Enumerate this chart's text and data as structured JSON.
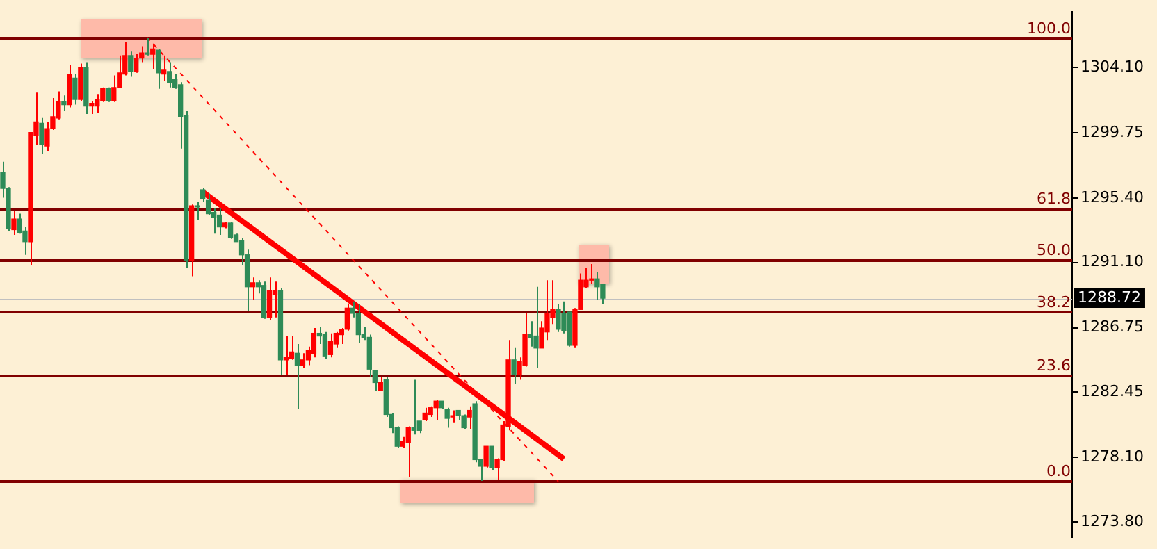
{
  "chart_data": {
    "type": "candlestick",
    "categories": [
      null,
      null,
      null,
      null,
      null,
      null,
      null,
      null,
      null,
      null,
      null,
      null,
      null,
      null,
      null,
      null,
      null,
      null,
      null,
      null,
      null,
      null,
      null,
      null,
      null,
      null,
      null,
      null,
      null,
      null,
      null,
      null,
      null,
      null,
      null,
      null,
      null,
      null,
      null,
      null,
      null,
      null,
      null,
      null,
      null,
      null,
      null,
      null,
      null,
      null,
      null,
      null,
      null,
      null,
      null,
      null,
      null,
      null,
      null,
      null,
      null,
      null,
      null,
      null,
      null,
      null,
      null,
      null,
      null,
      null,
      null,
      null,
      null,
      null,
      null,
      null,
      null,
      null,
      null,
      null,
      null,
      null,
      null,
      null,
      null,
      null,
      null,
      null,
      null,
      null,
      null,
      null,
      null,
      null,
      null,
      null,
      null,
      null,
      null,
      null,
      null,
      null,
      null,
      null,
      null,
      null,
      null,
      null,
      null,
      null,
      null,
      null,
      null,
      null,
      null,
      null,
      null,
      null,
      null,
      null,
      null,
      null,
      null,
      null,
      null,
      null,
      null,
      null,
      null,
      null,
      null,
      null,
      null,
      null,
      null,
      null,
      null,
      null,
      null,
      null,
      null,
      null,
      null,
      null,
      null,
      null,
      null,
      null,
      null,
      null,
      null,
      null,
      null,
      null,
      null,
      null,
      null,
      null,
      null,
      null,
      null,
      null,
      null,
      null,
      null,
      null,
      null,
      null,
      null,
      null,
      null,
      null,
      null,
      null,
      null,
      null,
      null,
      null,
      null,
      null,
      null,
      null,
      null,
      null,
      null,
      null,
      null,
      null,
      null,
      null,
      null,
      null,
      null
    ],
    "ohlc": [
      [
        1297.1,
        1297.81,
        1295.42,
        1296.04
      ],
      [
        1296.04,
        1296.12,
        1293.2,
        1293.38
      ],
      [
        1293.29,
        1294.53,
        1292.94,
        1294.0
      ],
      [
        1294.0,
        1294.35,
        1293.02,
        1293.11
      ],
      [
        1293.2,
        1293.47,
        1291.61,
        1292.49
      ],
      [
        1292.49,
        1299.76,
        1290.9,
        1299.76
      ],
      [
        1299.58,
        1302.42,
        1298.96,
        1300.47
      ],
      [
        1300.38,
        1300.73,
        1298.34,
        1298.96
      ],
      [
        1298.87,
        1300.47,
        1298.52,
        1300.02
      ],
      [
        1300.02,
        1302.06,
        1299.94,
        1300.82
      ],
      [
        1300.73,
        1302.5,
        1300.64,
        1301.8
      ],
      [
        1301.8,
        1302.24,
        1301.18,
        1301.62
      ],
      [
        1301.62,
        1304.28,
        1301.44,
        1303.66
      ],
      [
        1303.39,
        1303.66,
        1301.62,
        1301.97
      ],
      [
        1301.97,
        1304.36,
        1301.88,
        1304.1
      ],
      [
        1304.1,
        1304.45,
        1301.0,
        1301.53
      ],
      [
        1301.53,
        1301.88,
        1301.0,
        1301.71
      ],
      [
        1301.53,
        1302.33,
        1301.09,
        1301.97
      ],
      [
        1301.88,
        1302.77,
        1301.8,
        1302.68
      ],
      [
        1302.68,
        1302.77,
        1301.8,
        1301.88
      ],
      [
        1301.88,
        1303.57,
        1301.8,
        1302.77
      ],
      [
        1302.77,
        1304.9,
        1302.77,
        1303.74
      ],
      [
        1303.66,
        1305.78,
        1303.57,
        1304.9
      ],
      [
        1304.9,
        1305.16,
        1303.48,
        1303.83
      ],
      [
        1303.83,
        1304.98,
        1303.74,
        1304.72
      ],
      [
        1304.72,
        1305.52,
        1304.45,
        1305.07
      ],
      [
        1305.07,
        1306.05,
        1304.9,
        1304.98
      ],
      [
        1304.98,
        1305.69,
        1304.01,
        1305.34
      ],
      [
        1305.25,
        1305.34,
        1302.68,
        1303.74
      ],
      [
        1303.66,
        1304.9,
        1303.21,
        1303.92
      ],
      [
        1303.83,
        1304.45,
        1302.77,
        1303.12
      ],
      [
        1303.3,
        1303.66,
        1302.68,
        1302.77
      ],
      [
        1302.95,
        1303.12,
        1298.69,
        1300.82
      ],
      [
        1300.91,
        1301.18,
        1290.72,
        1291.25
      ],
      [
        1291.25,
        1294.97,
        1290.19,
        1294.88
      ],
      [
        1294.88,
        1295.15,
        1293.91,
        1294.8
      ],
      [
        1295.95,
        1296.04,
        1295.15,
        1295.33
      ],
      [
        1295.24,
        1295.68,
        1294.26,
        1294.35
      ],
      [
        1294.44,
        1294.71,
        1293.02,
        1294.09
      ],
      [
        1294.26,
        1294.71,
        1292.94,
        1293.47
      ],
      [
        1293.47,
        1293.82,
        1293.38,
        1293.73
      ],
      [
        1293.73,
        1293.82,
        1292.67,
        1292.76
      ],
      [
        1292.94,
        1293.02,
        1292.49,
        1292.49
      ],
      [
        1292.58,
        1292.76,
        1290.9,
        1291.61
      ],
      [
        1291.61,
        1291.96,
        1287.89,
        1289.48
      ],
      [
        1289.48,
        1290.1,
        1288.59,
        1289.75
      ],
      [
        1289.75,
        1289.92,
        1289.04,
        1289.48
      ],
      [
        1289.57,
        1289.83,
        1287.35,
        1287.44
      ],
      [
        1287.44,
        1290.1,
        1287.26,
        1289.21
      ],
      [
        1288.95,
        1289.83,
        1287.44,
        1289.21
      ],
      [
        1289.21,
        1289.39,
        1283.63,
        1284.61
      ],
      [
        1284.61,
        1286.2,
        1283.63,
        1284.78
      ],
      [
        1284.69,
        1286.2,
        1284.61,
        1285.14
      ],
      [
        1285.05,
        1285.67,
        1281.33,
        1284.25
      ],
      [
        1284.25,
        1285.05,
        1284.07,
        1284.61
      ],
      [
        1284.61,
        1285.49,
        1284.25,
        1285.23
      ],
      [
        1285.05,
        1286.73,
        1284.78,
        1286.38
      ],
      [
        1286.38,
        1286.82,
        1285.67,
        1286.2
      ],
      [
        1286.29,
        1286.47,
        1284.69,
        1284.87
      ],
      [
        1284.96,
        1286.38,
        1284.78,
        1285.85
      ],
      [
        1285.67,
        1286.47,
        1285.4,
        1286.38
      ],
      [
        1286.29,
        1286.73,
        1285.67,
        1286.65
      ],
      [
        1286.65,
        1288.33,
        1286.56,
        1288.06
      ],
      [
        1288.06,
        1288.51,
        1287.44,
        1287.71
      ],
      [
        1287.71,
        1288.33,
        1285.76,
        1286.29
      ],
      [
        1286.29,
        1286.82,
        1285.94,
        1286.11
      ],
      [
        1286.11,
        1286.29,
        1283.46,
        1283.99
      ],
      [
        1283.9,
        1283.9,
        1282.57,
        1283.1
      ],
      [
        1282.57,
        1283.46,
        1282.57,
        1283.1
      ],
      [
        1283.28,
        1283.46,
        1280.8,
        1280.97
      ],
      [
        1280.97,
        1281.06,
        1279.73,
        1280.09
      ],
      [
        1280.09,
        1280.18,
        1278.76,
        1278.85
      ],
      [
        1278.85,
        1279.47,
        1278.76,
        1279.2
      ],
      [
        1279.11,
        1280.18,
        1276.81,
        1280.09
      ],
      [
        1280.09,
        1283.28,
        1279.64,
        1279.91
      ],
      [
        1280.53,
        1280.53,
        1279.73,
        1279.91
      ],
      [
        1280.62,
        1281.42,
        1280.53,
        1281.06
      ],
      [
        1280.97,
        1281.51,
        1280.8,
        1281.42
      ],
      [
        1281.42,
        1281.95,
        1280.62,
        1281.86
      ],
      [
        1281.86,
        1281.86,
        1281.33,
        1281.42
      ],
      [
        1281.33,
        1281.42,
        1280.09,
        1280.71
      ],
      [
        1280.8,
        1281.24,
        1280.44,
        1280.89
      ],
      [
        1281.24,
        1281.24,
        1280.62,
        1280.89
      ],
      [
        1280.89,
        1280.97,
        1280.0,
        1280.09
      ],
      [
        1280.8,
        1281.51,
        1280.0,
        1281.24
      ],
      [
        1281.68,
        1281.86,
        1277.78,
        1277.96
      ],
      [
        1277.96,
        1277.96,
        1276.54,
        1277.52
      ],
      [
        1277.52,
        1278.85,
        1277.43,
        1278.85
      ],
      [
        1278.85,
        1278.85,
        1277.25,
        1277.43
      ],
      [
        1277.43,
        1278.05,
        1276.63,
        1277.96
      ],
      [
        1277.96,
        1280.53,
        1277.87,
        1280.27
      ],
      [
        1280.18,
        1285.94,
        1279.91,
        1284.61
      ],
      [
        1284.61,
        1285.4,
        1283.01,
        1283.63
      ],
      [
        1283.63,
        1284.78,
        1283.28,
        1284.52
      ],
      [
        1284.25,
        1287.71,
        1284.16,
        1286.29
      ],
      [
        1286.29,
        1287.18,
        1285.49,
        1286.11
      ],
      [
        1286.2,
        1289.48,
        1284.07,
        1285.4
      ],
      [
        1285.4,
        1287.18,
        1285.4,
        1286.73
      ],
      [
        1286.47,
        1289.92,
        1285.94,
        1287.71
      ],
      [
        1287.44,
        1289.92,
        1287.0,
        1287.97
      ],
      [
        1287.97,
        1288.33,
        1286.47,
        1286.65
      ],
      [
        1287.71,
        1288.51,
        1286.38,
        1286.56
      ],
      [
        1287.8,
        1287.8,
        1285.49,
        1285.58
      ],
      [
        1285.58,
        1288.06,
        1285.4,
        1287.97
      ],
      [
        1287.97,
        1290.37,
        1287.97,
        1289.92
      ],
      [
        1289.48,
        1290.72,
        1289.39,
        1289.92
      ],
      [
        1289.92,
        1290.99,
        1289.66,
        1290.01
      ],
      [
        1290.01,
        1290.45,
        1288.59,
        1289.48
      ],
      [
        1289.66,
        1289.66,
        1288.33,
        1288.72
      ],
      null,
      null,
      null,
      null,
      null,
      null,
      null,
      null,
      null,
      null,
      null,
      null,
      null,
      null,
      null,
      null,
      null,
      null,
      null,
      null,
      null,
      null,
      null,
      null,
      null,
      null,
      null,
      null,
      null,
      null,
      null,
      null,
      null,
      null,
      null,
      null,
      null,
      null,
      null,
      null,
      null,
      null,
      null,
      null,
      null,
      null,
      null,
      null,
      null,
      null,
      null,
      null,
      null,
      null,
      null,
      null,
      null,
      null,
      null,
      null,
      null,
      null,
      null,
      null,
      null,
      null,
      null,
      null,
      null,
      null,
      null,
      null,
      null,
      null,
      null,
      null,
      null,
      null,
      null,
      null,
      null,
      null,
      null,
      null
    ],
    "colors": [
      "#2e8b57",
      "#2e8b57",
      "#ff0000",
      "#2e8b57",
      "#2e8b57",
      "#ff0000",
      "#ff0000",
      "#2e8b57",
      "#ff0000",
      "#ff0000",
      "#ff0000",
      "#2e8b57",
      "#ff0000",
      "#2e8b57",
      "#ff0000",
      "#2e8b57",
      "#ff0000",
      "#ff0000",
      "#ff0000",
      "#2e8b57",
      "#ff0000",
      "#ff0000",
      "#ff0000",
      "#2e8b57",
      "#ff0000",
      "#ff0000",
      "#2e8b57",
      "#ff0000",
      "#2e8b57",
      "#ff0000",
      "#2e8b57",
      "#2e8b57",
      "#2e8b57",
      "#2e8b57",
      "#ff0000",
      "#2e8b57",
      "#2e8b57",
      "#2e8b57",
      "#2e8b57",
      "#2e8b57",
      "#ff0000",
      "#2e8b57",
      "#2e8b57",
      "#2e8b57",
      "#2e8b57",
      "#ff0000",
      "#2e8b57",
      "#2e8b57",
      "#ff0000",
      "#ff0000",
      "#2e8b57",
      "#ff0000",
      "#ff0000",
      "#2e8b57",
      "#ff0000",
      "#ff0000",
      "#ff0000",
      "#2e8b57",
      "#2e8b57",
      "#ff0000",
      "#ff0000",
      "#ff0000",
      "#ff0000",
      "#2e8b57",
      "#2e8b57",
      "#2e8b57",
      "#2e8b57",
      "#2e8b57",
      "#ff0000",
      "#2e8b57",
      "#2e8b57",
      "#2e8b57",
      "#ff0000",
      "#ff0000",
      "#2e8b57",
      "#2e8b57",
      "#ff0000",
      "#ff0000",
      "#ff0000",
      "#2e8b57",
      "#2e8b57",
      "#ff0000",
      "#2e8b57",
      "#2e8b57",
      "#ff0000",
      "#2e8b57",
      "#2e8b57",
      "#ff0000",
      "#2e8b57",
      "#ff0000",
      "#ff0000",
      "#ff0000",
      "#2e8b57",
      "#ff0000",
      "#ff0000",
      "#2e8b57",
      "#2e8b57",
      "#ff0000",
      "#ff0000",
      "#ff0000",
      "#2e8b57",
      "#2e8b57",
      "#2e8b57",
      "#ff0000",
      "#ff0000",
      "#ff0000",
      "#ff0000",
      "#2e8b57",
      "#2e8b57",
      null,
      null,
      null,
      null,
      null,
      null,
      null,
      null,
      null,
      null,
      null,
      null,
      null,
      null,
      null,
      null,
      null,
      null,
      null,
      null,
      null,
      null,
      null,
      null,
      null,
      null,
      null,
      null,
      null,
      null,
      null,
      null,
      null,
      null,
      null,
      null,
      null,
      null,
      null,
      null,
      null,
      null,
      null,
      null,
      null,
      null,
      null,
      null,
      null,
      null,
      null,
      null,
      null,
      null,
      null,
      null,
      null,
      null,
      null,
      null,
      null,
      null,
      null,
      null,
      null,
      null,
      null,
      null,
      null,
      null,
      null,
      null,
      null,
      null,
      null,
      null,
      null,
      null,
      null,
      null,
      null,
      null,
      null,
      null
    ],
    "series": [
      {
        "type": "line",
        "color": "#ff0000",
        "line_style": "solid",
        "values": [
          null,
          null,
          null,
          null,
          null,
          null,
          null,
          null,
          null,
          null,
          null,
          null,
          null,
          null,
          null,
          null,
          null,
          null,
          null,
          null,
          null,
          null,
          null,
          null,
          null,
          null,
          null,
          null,
          null,
          null,
          null,
          null,
          null,
          null,
          null,
          null,
          1295.8,
          null,
          null,
          null,
          null,
          null,
          null,
          null,
          null,
          null,
          null,
          null,
          null,
          null,
          null,
          null,
          null,
          null,
          null,
          null,
          null,
          null,
          null,
          null,
          null,
          null,
          null,
          null,
          null,
          null,
          null,
          null,
          null,
          null,
          null,
          null,
          null,
          null,
          null,
          null,
          null,
          null,
          null,
          null,
          null,
          null,
          null,
          null,
          null,
          null,
          null,
          null,
          null,
          null,
          null,
          null,
          null,
          null,
          null,
          null,
          null,
          null,
          null,
          null,
          null,
          1278.0,
          null,
          null,
          null,
          null,
          null,
          null,
          null,
          null,
          null,
          null,
          null,
          null,
          null,
          null,
          null,
          null,
          null,
          null,
          null,
          null,
          null,
          null,
          null,
          null,
          null,
          null,
          null,
          null,
          null,
          null,
          null,
          null,
          null,
          null,
          null,
          null,
          null,
          null,
          null,
          null,
          null,
          null,
          null,
          null,
          null,
          null,
          null,
          null,
          null,
          null,
          null,
          null,
          null,
          null,
          null,
          null,
          null,
          null,
          null,
          null,
          null,
          null,
          null,
          null,
          null,
          null,
          null,
          null,
          null,
          null,
          null,
          null,
          null,
          null,
          null,
          null,
          null,
          null,
          null,
          null,
          null,
          null,
          null,
          null,
          null,
          null,
          null,
          null,
          null,
          null,
          null
        ]
      },
      {
        "type": "line",
        "color": "#ff0000",
        "line_style": "dashed",
        "values": [
          null,
          null,
          null,
          null,
          null,
          null,
          null,
          null,
          null,
          null,
          null,
          null,
          null,
          null,
          null,
          null,
          null,
          null,
          null,
          null,
          null,
          null,
          null,
          null,
          null,
          null,
          1306.1,
          null,
          null,
          null,
          null,
          null,
          null,
          null,
          null,
          null,
          null,
          null,
          null,
          null,
          null,
          null,
          null,
          null,
          null,
          null,
          null,
          null,
          null,
          null,
          null,
          null,
          null,
          null,
          null,
          null,
          null,
          null,
          null,
          null,
          null,
          null,
          null,
          null,
          null,
          null,
          null,
          null,
          null,
          null,
          null,
          null,
          null,
          null,
          null,
          null,
          null,
          null,
          null,
          null,
          null,
          null,
          null,
          null,
          null,
          null,
          null,
          null,
          null,
          null,
          null,
          null,
          null,
          null,
          null,
          null,
          null,
          null,
          null,
          null,
          1276.5,
          null,
          null,
          null,
          null,
          null,
          null,
          null,
          null,
          null,
          null,
          null,
          null,
          null,
          null,
          null,
          null,
          null,
          null,
          null,
          null,
          null,
          null,
          null,
          null,
          null,
          null,
          null,
          null,
          null,
          null,
          null,
          null,
          null,
          null,
          null,
          null,
          null,
          null,
          null,
          null,
          null,
          null,
          null,
          null,
          null,
          null,
          null,
          null,
          null,
          null,
          null,
          null,
          null,
          null,
          null,
          null,
          null,
          null,
          null,
          null,
          null,
          null,
          null,
          null,
          null,
          null,
          null,
          null,
          null,
          null,
          null,
          null,
          null,
          null,
          null,
          null,
          null,
          null,
          null,
          null,
          null,
          null,
          null,
          null,
          null,
          null,
          null,
          null,
          null,
          null,
          null,
          null
        ]
      }
    ],
    "ylim": [
      1272.8,
      1307.8
    ],
    "yticks": [
      {
        "value": 1304.1,
        "label": "1304.10"
      },
      {
        "value": 1299.75,
        "label": "1299.75"
      },
      {
        "value": 1295.4,
        "label": "1295.40"
      },
      {
        "value": 1291.1,
        "label": "1291.10"
      },
      {
        "value": 1286.75,
        "label": "1286.75"
      },
      {
        "value": 1282.45,
        "label": "1282.45"
      },
      {
        "value": 1278.1,
        "label": "1278.10"
      },
      {
        "value": 1273.8,
        "label": "1273.80"
      }
    ],
    "ref_lines": [
      {
        "axis": "y",
        "value": 1306.05,
        "color": "#800000"
      },
      {
        "axis": "y",
        "value": 1294.71,
        "color": "#800000"
      },
      {
        "axis": "y",
        "value": 1291.25,
        "color": "#800000"
      },
      {
        "axis": "y",
        "value": 1287.8,
        "color": "#800000"
      },
      {
        "axis": "y",
        "value": 1283.55,
        "color": "#800000"
      },
      {
        "axis": "y",
        "value": 1276.54,
        "color": "#800000"
      },
      {
        "axis": "y",
        "value": 1288.72,
        "label": "1288.72",
        "color": "#c0c0c0"
      }
    ],
    "annotations": [
      {
        "text": "100.0",
        "y": 1306.05
      },
      {
        "text": "61.8",
        "y": 1294.71
      },
      {
        "text": "50.0",
        "y": 1291.25
      },
      {
        "text": "38.2",
        "y": 1287.8
      },
      {
        "text": "23.6",
        "y": 1283.55
      },
      {
        "text": "0.0",
        "y": 1276.54
      }
    ],
    "grid": false,
    "legend": false,
    "tick_labels": "y"
  }
}
